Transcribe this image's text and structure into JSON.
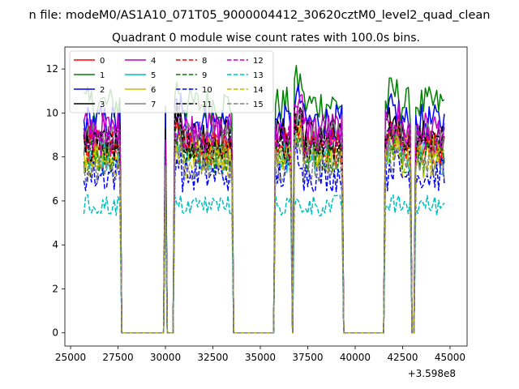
{
  "chart_data": {
    "type": "line",
    "suptitle": "n file: modeM0/AS1A10_071T05_9000004412_30620cztM0_level2_quad_clean",
    "title": "Quadrant 0 module wise count rates with 100.0s bins.",
    "xlabel": "",
    "ylabel": "",
    "x_offset_label": "+3.598e8",
    "xlim": [
      24700,
      45900
    ],
    "ylim": [
      -0.6,
      13.0
    ],
    "xticks": [
      25000,
      27500,
      30000,
      32500,
      35000,
      37500,
      40000,
      42500,
      45000
    ],
    "yticks": [
      0,
      2,
      4,
      6,
      8,
      10,
      12
    ],
    "legend_position": "top-left",
    "legend_columns": 4,
    "x_start": 25700,
    "x_step": 100,
    "x_end": 44700,
    "segments": [
      {
        "state": "on",
        "from": 25700,
        "to": 27600
      },
      {
        "state": "off",
        "from": 27800,
        "to": 29900
      },
      {
        "state": "on",
        "from": 30000,
        "to": 30000
      },
      {
        "state": "off",
        "from": 30200,
        "to": 30300
      },
      {
        "state": "on",
        "from": 30500,
        "to": 33500
      },
      {
        "state": "off",
        "from": 33700,
        "to": 35700
      },
      {
        "state": "on",
        "from": 35800,
        "to": 36600
      },
      {
        "state": "off",
        "from": 36700,
        "to": 36700
      },
      {
        "state": "on",
        "from": 36800,
        "to": 39300
      },
      {
        "state": "off",
        "from": 39500,
        "to": 41500
      },
      {
        "state": "on",
        "from": 41600,
        "to": 42900
      },
      {
        "state": "off",
        "from": 43000,
        "to": 43100
      },
      {
        "state": "on",
        "from": 43200,
        "to": 44700
      }
    ],
    "series": [
      {
        "name": "0",
        "color": "#ff0000",
        "dash": "solid",
        "level": 8.6
      },
      {
        "name": "1",
        "color": "#008000",
        "dash": "solid",
        "level": 10.4
      },
      {
        "name": "2",
        "color": "#0000ff",
        "dash": "solid",
        "level": 9.6
      },
      {
        "name": "3",
        "color": "#000000",
        "dash": "solid",
        "level": 9.0
      },
      {
        "name": "4",
        "color": "#bf00bf",
        "dash": "solid",
        "level": 9.3
      },
      {
        "name": "5",
        "color": "#00bfbf",
        "dash": "solid",
        "level": 8.0
      },
      {
        "name": "6",
        "color": "#bfbf00",
        "dash": "solid",
        "level": 8.2
      },
      {
        "name": "7",
        "color": "#808080",
        "dash": "solid",
        "level": 8.8
      },
      {
        "name": "8",
        "color": "#ff0000",
        "dash": "dashed",
        "level": 8.4
      },
      {
        "name": "9",
        "color": "#008000",
        "dash": "dashed",
        "level": 8.0
      },
      {
        "name": "10",
        "color": "#0000ff",
        "dash": "dashed",
        "level": 7.2
      },
      {
        "name": "11",
        "color": "#000000",
        "dash": "dashed",
        "level": 8.5
      },
      {
        "name": "12",
        "color": "#bf00bf",
        "dash": "dashed",
        "level": 8.8
      },
      {
        "name": "13",
        "color": "#00bfbf",
        "dash": "dashed",
        "level": 5.8
      },
      {
        "name": "14",
        "color": "#bfbf00",
        "dash": "dashed",
        "level": 7.8
      },
      {
        "name": "15",
        "color": "#808080",
        "dash": "dashed",
        "level": 7.6
      }
    ]
  }
}
